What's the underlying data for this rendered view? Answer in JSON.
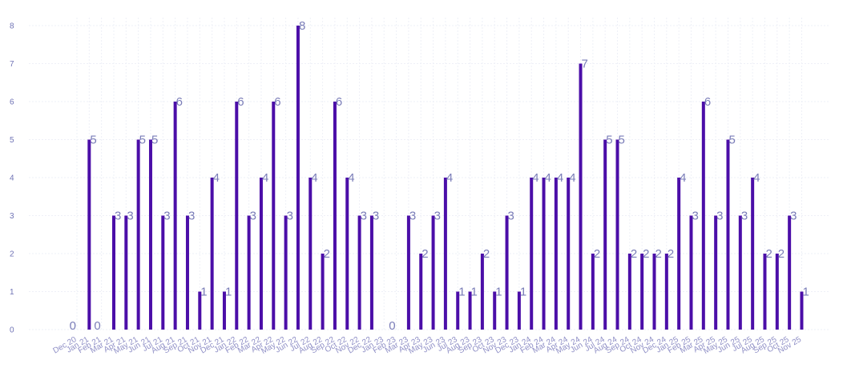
{
  "chart_data": {
    "type": "bar",
    "title": "",
    "xlabel": "",
    "ylabel": "",
    "ylim": [
      0,
      8
    ],
    "yticks": [
      0,
      1,
      2,
      3,
      4,
      5,
      6,
      7,
      8
    ],
    "grid": true,
    "legend": "none",
    "bar_color": "#4b0ea8",
    "categories": [
      "Dec 20",
      "Jan 21",
      "Feb 21",
      "Mar 21",
      "Apr 21",
      "May 21",
      "Jun 21",
      "Jul 21",
      "Aug 21",
      "Sep 21",
      "Oct 21",
      "Nov 21",
      "Dec 21",
      "Jan 22",
      "Feb 22",
      "Mar 22",
      "Apr 22",
      "May 22",
      "Jun 22",
      "Jul 22",
      "Aug 22",
      "Sep 22",
      "Oct 22",
      "Nov 22",
      "Dec 22",
      "Jan 23",
      "Feb 23",
      "Mar 23",
      "Apr 23",
      "May 23",
      "Jun 23",
      "Jul 23",
      "Aug 23",
      "Sep 23",
      "Oct 23",
      "Nov 23",
      "Dec 23",
      "Jan 24",
      "Feb 24",
      "Mar 24",
      "Apr 24",
      "May 24",
      "Jun 24",
      "Jul 24",
      "Aug 24",
      "Sep 24",
      "Oct 24",
      "Nov 24",
      "Dec 24",
      "Jan 25",
      "Feb 25",
      "Mar 25",
      "Apr 25",
      "May 25",
      "Jun 25",
      "Jul 25",
      "Aug 25",
      "Sep 25",
      "Oct 25",
      "Nov 25"
    ],
    "values": [
      0,
      5,
      0,
      3,
      3,
      5,
      5,
      3,
      6,
      3,
      1,
      4,
      1,
      6,
      3,
      4,
      6,
      3,
      8,
      4,
      2,
      6,
      4,
      3,
      3,
      null,
      0,
      3,
      2,
      3,
      4,
      1,
      1,
      2,
      1,
      3,
      1,
      4,
      4,
      4,
      4,
      7,
      2,
      5,
      5,
      2,
      2,
      2,
      2,
      4,
      3,
      6,
      3,
      5,
      3,
      4,
      2,
      2,
      3,
      1
    ]
  }
}
